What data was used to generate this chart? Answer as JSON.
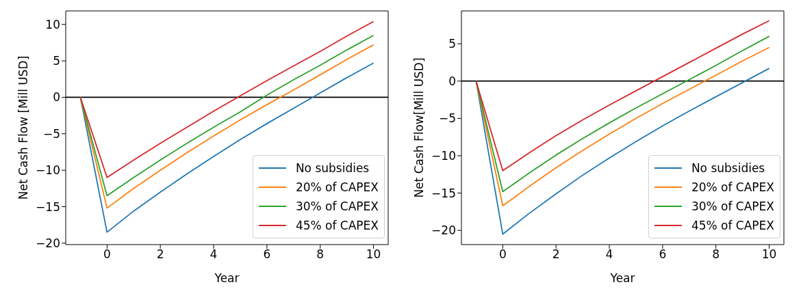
{
  "chart_data": [
    {
      "type": "line",
      "xlabel": "Year",
      "ylabel": "Net Cash Flow [Mill USD]",
      "x": [
        -1,
        0,
        1,
        2,
        3,
        4,
        5,
        6,
        7,
        8,
        9,
        10
      ],
      "xlim": [
        -1.55,
        10.55
      ],
      "xticks": [
        0,
        2,
        4,
        6,
        8,
        10
      ],
      "ylim": [
        -20.2,
        11.85
      ],
      "yticks": [
        -20,
        -15,
        -10,
        -5,
        0,
        5,
        10
      ],
      "grid": false,
      "legend": "bottom right",
      "marker": "none",
      "line_style": "solid",
      "ref_lines": [
        {
          "axis": "y",
          "value": 0,
          "color": "#000000"
        }
      ],
      "series": [
        {
          "name": "No subsidies",
          "color": "#1f77b4",
          "values": [
            0,
            -18.5,
            -15.6,
            -13.0,
            -10.5,
            -8.1,
            -5.8,
            -3.6,
            -1.5,
            0.6,
            2.7,
            4.7
          ]
        },
        {
          "name": "20% of CAPEX",
          "color": "#ff7f0e",
          "values": [
            0,
            -15.2,
            -12.5,
            -10.0,
            -7.6,
            -5.3,
            -3.1,
            -1.0,
            1.0,
            3.1,
            5.2,
            7.2
          ]
        },
        {
          "name": "30% of CAPEX",
          "color": "#2ca02c",
          "values": [
            0,
            -13.5,
            -11.0,
            -8.6,
            -6.3,
            -4.1,
            -2.0,
            0.3,
            2.4,
            4.4,
            6.5,
            8.5
          ]
        },
        {
          "name": "45% of CAPEX",
          "color": "#d62728",
          "values": [
            0,
            -11.0,
            -8.6,
            -6.3,
            -4.1,
            -1.9,
            0.2,
            2.3,
            4.3,
            6.3,
            8.4,
            10.4
          ]
        }
      ]
    },
    {
      "type": "line",
      "xlabel": "Year",
      "ylabel": "Net Cash Flow[Mill USD]",
      "x": [
        -1,
        0,
        1,
        2,
        3,
        4,
        5,
        6,
        7,
        8,
        9,
        10
      ],
      "xlim": [
        -1.55,
        10.55
      ],
      "xticks": [
        0,
        2,
        4,
        6,
        8,
        10
      ],
      "ylim": [
        -21.9,
        9.4
      ],
      "yticks": [
        -20,
        -15,
        -10,
        -5,
        0,
        5
      ],
      "grid": false,
      "legend": "bottom right",
      "marker": "none",
      "line_style": "solid",
      "ref_lines": [
        {
          "axis": "y",
          "value": 0,
          "color": "#000000"
        }
      ],
      "series": [
        {
          "name": "No subsidies",
          "color": "#1f77b4",
          "values": [
            0,
            -20.5,
            -17.7,
            -15.1,
            -12.6,
            -10.3,
            -8.1,
            -6.0,
            -4.0,
            -2.1,
            -0.2,
            1.7
          ]
        },
        {
          "name": "20% of CAPEX",
          "color": "#ff7f0e",
          "values": [
            0,
            -16.7,
            -14.1,
            -11.6,
            -9.3,
            -7.1,
            -5.0,
            -3.0,
            -1.1,
            0.8,
            2.7,
            4.5
          ]
        },
        {
          "name": "30% of CAPEX",
          "color": "#2ca02c",
          "values": [
            0,
            -14.8,
            -12.3,
            -9.9,
            -7.7,
            -5.6,
            -3.6,
            -1.7,
            0.2,
            2.1,
            4.1,
            6.0
          ]
        },
        {
          "name": "45% of CAPEX",
          "color": "#d62728",
          "values": [
            0,
            -12.0,
            -9.6,
            -7.3,
            -5.2,
            -3.2,
            -1.3,
            0.6,
            2.5,
            4.4,
            6.3,
            8.1
          ]
        }
      ]
    }
  ]
}
